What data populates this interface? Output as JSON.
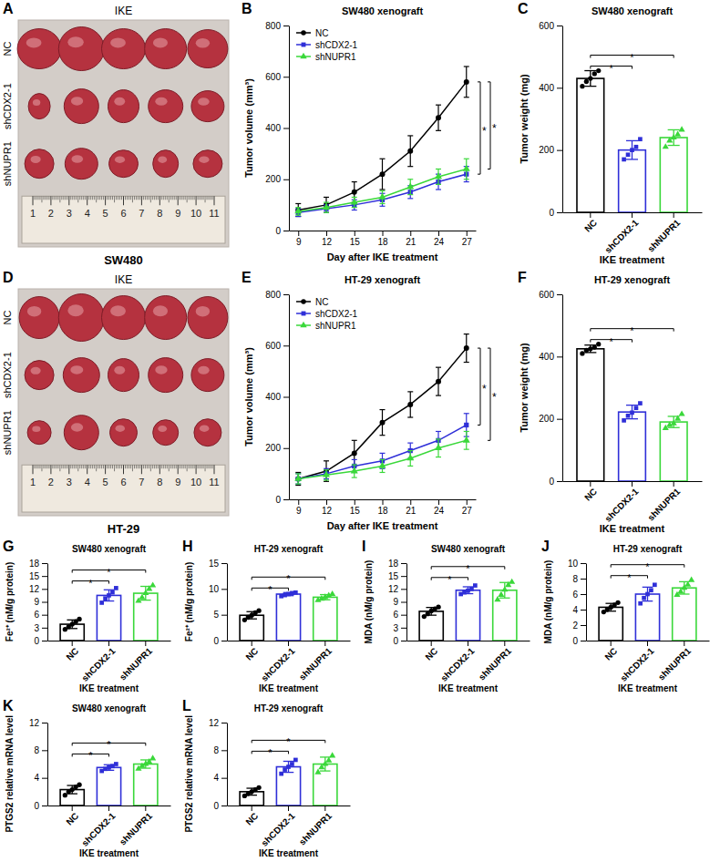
{
  "chart_data": [
    {
      "panel": "A",
      "type": "image",
      "title": "IKE",
      "caption": "SW480",
      "row_labels": [
        "NC",
        "shCDX2-1",
        "shNUPR1"
      ],
      "ruler": [
        1,
        2,
        3,
        4,
        5,
        6,
        7,
        8,
        9,
        10,
        11
      ]
    },
    {
      "panel": "B",
      "type": "line",
      "title": "SW480 xenograft",
      "x_label": "Day after IKE treatment",
      "y_label": "Tumor volume (mm³)",
      "x": [
        9,
        12,
        15,
        18,
        21,
        24,
        27
      ],
      "xlim": [
        8,
        28
      ],
      "xticks": [
        9,
        12,
        15,
        18,
        21,
        24,
        27
      ],
      "ylim": [
        0,
        800
      ],
      "yticks": [
        0,
        200,
        400,
        600,
        800
      ],
      "legend": "top-left",
      "series": [
        {
          "name": "NC",
          "color": "#000000",
          "marker": "circle",
          "values": [
            80,
            100,
            150,
            220,
            310,
            440,
            580
          ],
          "errors": [
            25,
            30,
            40,
            60,
            60,
            50,
            60
          ]
        },
        {
          "name": "shCDX2-1",
          "color": "#2f2fd8",
          "marker": "square",
          "values": [
            70,
            85,
            100,
            120,
            150,
            190,
            220
          ],
          "errors": [
            15,
            15,
            20,
            25,
            25,
            30,
            30
          ]
        },
        {
          "name": "shNUPR1",
          "color": "#3ad83a",
          "marker": "triangle",
          "values": [
            75,
            90,
            110,
            130,
            170,
            210,
            240
          ],
          "errors": [
            15,
            20,
            20,
            25,
            30,
            30,
            40
          ]
        }
      ],
      "significance": [
        {
          "pair": [
            0,
            1
          ],
          "label": "*"
        },
        {
          "pair": [
            0,
            2
          ],
          "label": "*"
        }
      ]
    },
    {
      "panel": "C",
      "type": "bar",
      "title": "SW480 xenograft",
      "x_label": "IKE treatment",
      "y_label": "Tumor weight (mg)",
      "categories": [
        "NC",
        "shCDX2-1",
        "shNUPR1"
      ],
      "values": [
        430,
        200,
        240
      ],
      "errors": [
        25,
        30,
        25
      ],
      "points": [
        [
          405,
          420,
          430,
          445,
          455
        ],
        [
          170,
          185,
          200,
          210,
          235
        ],
        [
          210,
          230,
          240,
          250,
          265
        ]
      ],
      "colors": [
        "#000000",
        "#2f2fd8",
        "#3ad83a"
      ],
      "markers": [
        "circle",
        "square",
        "triangle"
      ],
      "ylim": [
        0,
        600
      ],
      "yticks": [
        0,
        200,
        400,
        600
      ],
      "significance": [
        {
          "pair": [
            0,
            1
          ],
          "label": "*"
        },
        {
          "pair": [
            0,
            2
          ],
          "label": "*"
        }
      ]
    },
    {
      "panel": "D",
      "type": "image",
      "title": "IKE",
      "caption": "HT-29",
      "row_labels": [
        "NC",
        "shCDX2-1",
        "shNUPR1"
      ],
      "ruler": [
        1,
        2,
        3,
        4,
        5,
        6,
        7,
        8,
        9,
        10,
        11
      ]
    },
    {
      "panel": "E",
      "type": "line",
      "title": "HT-29 xenograft",
      "x_label": "Day after IKE treatment",
      "y_label": "Tumor volume (mm³)",
      "x": [
        9,
        12,
        15,
        18,
        21,
        24,
        27
      ],
      "xlim": [
        8,
        28
      ],
      "xticks": [
        9,
        12,
        15,
        18,
        21,
        24,
        27
      ],
      "ylim": [
        0,
        800
      ],
      "yticks": [
        0,
        200,
        400,
        600,
        800
      ],
      "legend": "top-left",
      "series": [
        {
          "name": "NC",
          "color": "#000000",
          "marker": "circle",
          "values": [
            80,
            110,
            180,
            300,
            370,
            460,
            590
          ],
          "errors": [
            25,
            40,
            50,
            50,
            50,
            55,
            55
          ]
        },
        {
          "name": "shCDX2-1",
          "color": "#2f2fd8",
          "marker": "square",
          "values": [
            80,
            100,
            130,
            150,
            190,
            230,
            290
          ],
          "errors": [
            20,
            20,
            25,
            30,
            30,
            35,
            45
          ]
        },
        {
          "name": "shNUPR1",
          "color": "#3ad83a",
          "marker": "triangle",
          "values": [
            80,
            95,
            110,
            130,
            160,
            200,
            230
          ],
          "errors": [
            20,
            20,
            25,
            25,
            30,
            35,
            35
          ]
        }
      ],
      "significance": [
        {
          "pair": [
            0,
            1
          ],
          "label": "*"
        },
        {
          "pair": [
            0,
            2
          ],
          "label": "*"
        }
      ]
    },
    {
      "panel": "F",
      "type": "bar",
      "title": "HT-29 xenograft",
      "x_label": "IKE treatment",
      "y_label": "Tumor weight (mg)",
      "categories": [
        "NC",
        "shCDX2-1",
        "shNUPR1"
      ],
      "values": [
        425,
        222,
        190
      ],
      "errors": [
        12,
        22,
        18
      ],
      "points": [
        [
          410,
          420,
          425,
          430,
          440
        ],
        [
          195,
          210,
          220,
          235,
          250
        ],
        [
          170,
          180,
          185,
          200,
          215
        ]
      ],
      "colors": [
        "#000000",
        "#2f2fd8",
        "#3ad83a"
      ],
      "markers": [
        "circle",
        "square",
        "triangle"
      ],
      "ylim": [
        0,
        600
      ],
      "yticks": [
        0,
        200,
        400,
        600
      ],
      "significance": [
        {
          "pair": [
            0,
            1
          ],
          "label": "*"
        },
        {
          "pair": [
            0,
            2
          ],
          "label": "*"
        }
      ]
    },
    {
      "panel": "G",
      "type": "bar",
      "title": "SW480 xenograft",
      "x_label": "IKE treatment",
      "y_label": "Fe²⁺ (nM/g protein)",
      "categories": [
        "NC",
        "shCDX2-1",
        "shNUPR1"
      ],
      "values": [
        3.8,
        10.5,
        11
      ],
      "errors": [
        1,
        1.3,
        1.6
      ],
      "points": [
        [
          2.6,
          3.2,
          3.8,
          4.4,
          5
        ],
        [
          8.8,
          9.8,
          10.5,
          11.2,
          12.2
        ],
        [
          9.2,
          10,
          11,
          12,
          12.8
        ]
      ],
      "colors": [
        "#000000",
        "#2f2fd8",
        "#3ad83a"
      ],
      "markers": [
        "circle",
        "square",
        "triangle"
      ],
      "ylim": [
        0,
        18
      ],
      "yticks": [
        0,
        3,
        6,
        9,
        12,
        15,
        18
      ],
      "significance": [
        {
          "pair": [
            0,
            1
          ],
          "label": "*"
        },
        {
          "pair": [
            0,
            2
          ],
          "label": "*"
        }
      ]
    },
    {
      "panel": "H",
      "type": "bar",
      "title": "HT-29 xenograft",
      "x_label": "IKE treatment",
      "y_label": "Fe²⁺ (nM/g protein)",
      "categories": [
        "NC",
        "shCDX2-1",
        "shNUPR1"
      ],
      "values": [
        4.9,
        9,
        8.4
      ],
      "errors": [
        0.7,
        0.3,
        0.5
      ],
      "points": [
        [
          4,
          4.5,
          4.9,
          5.4,
          5.8
        ],
        [
          8.6,
          8.8,
          9,
          9.2,
          9.3
        ],
        [
          7.8,
          8.1,
          8.4,
          8.7,
          9
        ]
      ],
      "colors": [
        "#000000",
        "#2f2fd8",
        "#3ad83a"
      ],
      "markers": [
        "circle",
        "square",
        "triangle"
      ],
      "ylim": [
        0,
        15
      ],
      "yticks": [
        0,
        5,
        10,
        15
      ],
      "significance": [
        {
          "pair": [
            0,
            1
          ],
          "label": "*"
        },
        {
          "pair": [
            0,
            2
          ],
          "label": "*"
        }
      ]
    },
    {
      "panel": "I",
      "type": "bar",
      "title": "SW480 xenograft",
      "x_label": "IKE treatment",
      "y_label": "MDA (nM/g protein)",
      "categories": [
        "NC",
        "shCDX2-1",
        "shNUPR1"
      ],
      "values": [
        6.8,
        11.7,
        11.7
      ],
      "errors": [
        0.9,
        0.8,
        1.8
      ],
      "points": [
        [
          5.6,
          6.2,
          6.9,
          7.4,
          7.8
        ],
        [
          10.8,
          11.2,
          11.6,
          12,
          12.8
        ],
        [
          9.5,
          10.6,
          11.8,
          12.9,
          13.6
        ]
      ],
      "colors": [
        "#000000",
        "#2f2fd8",
        "#3ad83a"
      ],
      "markers": [
        "circle",
        "square",
        "triangle"
      ],
      "ylim": [
        0,
        18
      ],
      "yticks": [
        0,
        3,
        6,
        9,
        12,
        15,
        18
      ],
      "significance": [
        {
          "pair": [
            0,
            1
          ],
          "label": "*"
        },
        {
          "pair": [
            0,
            2
          ],
          "label": "*"
        }
      ]
    },
    {
      "panel": "J",
      "type": "bar",
      "title": "HT-29 xenograft",
      "x_label": "IKE treatment",
      "y_label": "MDA (nM/g protein)",
      "categories": [
        "NC",
        "shCDX2-1",
        "shNUPR1"
      ],
      "values": [
        4.3,
        6,
        6.8
      ],
      "errors": [
        0.5,
        0.9,
        0.8
      ],
      "points": [
        [
          3.7,
          4,
          4.3,
          4.6,
          4.9
        ],
        [
          4.8,
          5.5,
          6,
          6.5,
          7.2
        ],
        [
          5.9,
          6.3,
          6.8,
          7.2,
          7.8
        ]
      ],
      "colors": [
        "#000000",
        "#2f2fd8",
        "#3ad83a"
      ],
      "markers": [
        "circle",
        "square",
        "triangle"
      ],
      "ylim": [
        0,
        10
      ],
      "yticks": [
        0,
        2,
        4,
        6,
        8,
        10
      ],
      "significance": [
        {
          "pair": [
            0,
            1
          ],
          "label": "*"
        },
        {
          "pair": [
            0,
            2
          ],
          "label": "*"
        }
      ]
    },
    {
      "panel": "K",
      "type": "bar",
      "title": "SW480 xenograft",
      "x_label": "IKE treatment",
      "y_label": "PTGS2 relative mRNA level",
      "categories": [
        "NC",
        "shCDX2-1",
        "shNUPR1"
      ],
      "values": [
        2.3,
        5.5,
        6
      ],
      "errors": [
        0.6,
        0.4,
        0.6
      ],
      "points": [
        [
          1.5,
          2,
          2.3,
          2.7,
          3
        ],
        [
          5,
          5.3,
          5.5,
          5.7,
          6
        ],
        [
          5.3,
          5.7,
          6,
          6.3,
          6.8
        ]
      ],
      "colors": [
        "#000000",
        "#2f2fd8",
        "#3ad83a"
      ],
      "markers": [
        "circle",
        "square",
        "triangle"
      ],
      "ylim": [
        0,
        12
      ],
      "yticks": [
        0,
        4,
        8,
        12
      ],
      "significance": [
        {
          "pair": [
            0,
            1
          ],
          "label": "*"
        },
        {
          "pair": [
            0,
            2
          ],
          "label": "*"
        }
      ]
    },
    {
      "panel": "L",
      "type": "bar",
      "title": "HT-29 xenograft",
      "x_label": "IKE treatment",
      "y_label": "PTGS2 relative mRNA level",
      "categories": [
        "NC",
        "shCDX2-1",
        "shNUPR1"
      ],
      "values": [
        2,
        5.6,
        6
      ],
      "errors": [
        0.5,
        0.8,
        1
      ],
      "points": [
        [
          1.4,
          1.7,
          2,
          2.3,
          2.6
        ],
        [
          4.6,
          5.2,
          5.6,
          6,
          6.6
        ],
        [
          4.8,
          5.5,
          6,
          6.5,
          7.2
        ]
      ],
      "colors": [
        "#000000",
        "#2f2fd8",
        "#3ad83a"
      ],
      "markers": [
        "circle",
        "square",
        "triangle"
      ],
      "ylim": [
        0,
        12
      ],
      "yticks": [
        0,
        4,
        8,
        12
      ],
      "significance": [
        {
          "pair": [
            0,
            1
          ],
          "label": "*"
        },
        {
          "pair": [
            0,
            2
          ],
          "label": "*"
        }
      ]
    }
  ]
}
